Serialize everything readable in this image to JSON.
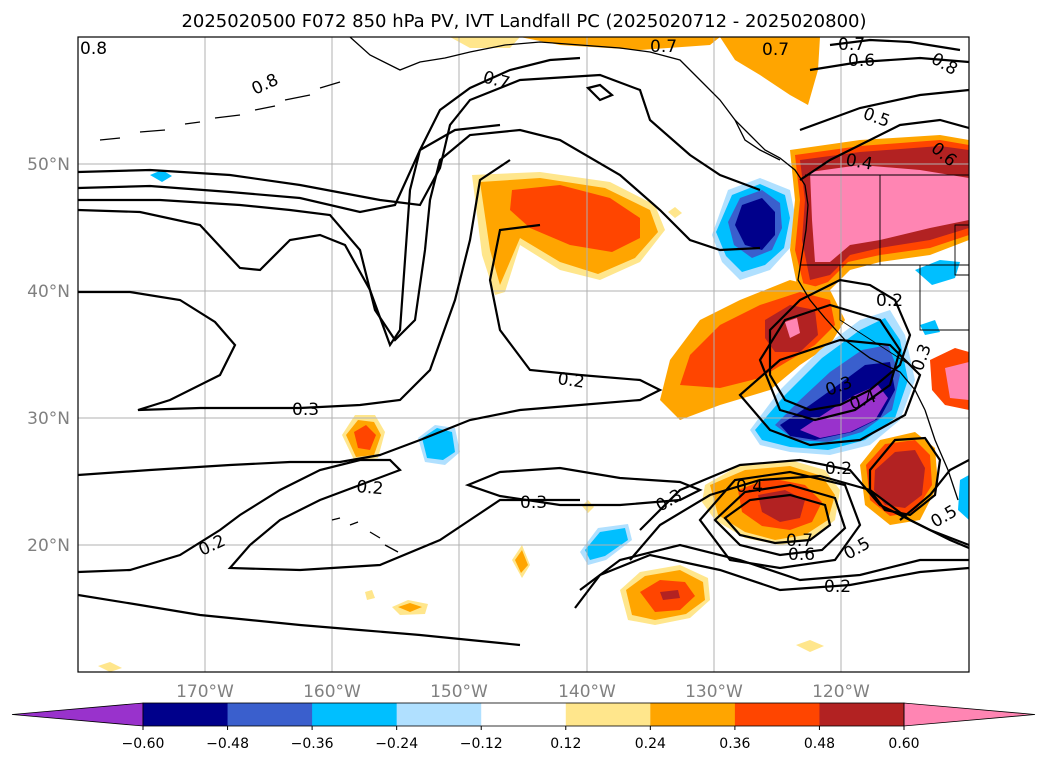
{
  "title": "2025020500 F072 850 hPa PV, IVT Landfall PC (2025020712 - 2025020800)",
  "map": {
    "lon_labels": [
      "170°W",
      "160°W",
      "150°W",
      "140°W",
      "130°W",
      "120°W"
    ],
    "lat_labels": [
      "50°N",
      "40°N",
      "30°N",
      "20°N"
    ]
  },
  "colorbar": {
    "ticks": [
      "−0.60",
      "−0.48",
      "−0.36",
      "−0.24",
      "−0.12",
      "0.12",
      "0.24",
      "0.36",
      "0.48",
      "0.60"
    ],
    "colors": [
      "#9932cc",
      "#00008b",
      "#3a5fcd",
      "#00bfff",
      "#b0e0ff",
      "#ffffff",
      "#ffe68c",
      "#ffa500",
      "#ff4500",
      "#b22222",
      "#ff85b3"
    ]
  },
  "contour_labels": [
    "0.8",
    "0.8",
    "0.7",
    "0.7",
    "0.7",
    "0.7",
    "0.6",
    "0.8",
    "0.5",
    "0.6",
    "0.4",
    "0.2",
    "0.3",
    "0.2",
    "0.2",
    "0.3",
    "0.2",
    "0.3",
    "0.4",
    "0.3",
    "0.4",
    "0.2",
    "0.3",
    "0.7",
    "0.6",
    "0.5",
    "0.5",
    "0.2"
  ]
}
